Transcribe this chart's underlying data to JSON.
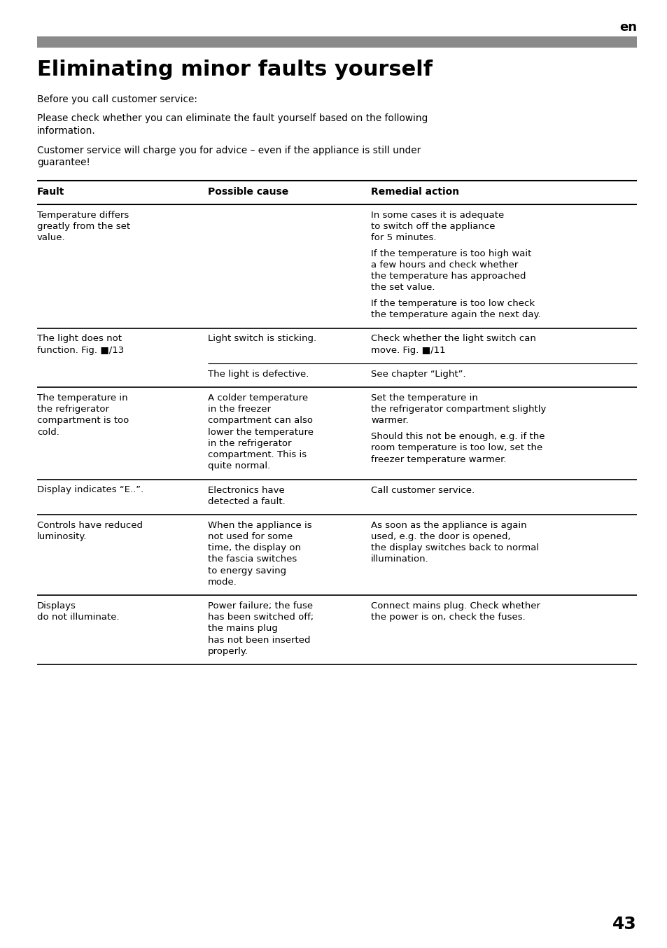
{
  "page_num": "43",
  "lang_label": "en",
  "title": "Eliminating minor faults yourself",
  "intro_paras": [
    "Before you call customer service:",
    "Please check whether you can eliminate the fault yourself based on the following\ninformation.",
    "Customer service will charge you for advice – even if the appliance is still under\nguarantee!"
  ],
  "col_headers": [
    "Fault",
    "Possible cause",
    "Remedial action"
  ],
  "rows": [
    {
      "fault": [
        "Temperature differs",
        "greatly from the set",
        "value."
      ],
      "cause": [],
      "remedy": [
        "In some cases it is adequate",
        "to switch off the appliance",
        "for 5 minutes.",
        "",
        "If the temperature is too high wait",
        "a few hours and check whether",
        "the temperature has approached",
        "the set value.",
        "",
        "If the temperature is too low check",
        "the temperature again the next day."
      ],
      "sub": null
    },
    {
      "fault": [
        "The light does not",
        "function. Fig. ■/13"
      ],
      "cause": [
        "Light switch is sticking."
      ],
      "remedy": [
        "Check whether the light switch can",
        "move. Fig. ■/11"
      ],
      "sub": {
        "cause": [
          "The light is defective."
        ],
        "remedy": [
          "See chapter “Light”."
        ]
      }
    },
    {
      "fault": [
        "The temperature in",
        "the refrigerator",
        "compartment is too",
        "cold."
      ],
      "cause": [
        "A colder temperature",
        "in the freezer",
        "compartment can also",
        "lower the temperature",
        "in the refrigerator",
        "compartment. This is",
        "quite normal."
      ],
      "remedy": [
        "Set the temperature in",
        "the refrigerator compartment slightly",
        "warmer.",
        "",
        "Should this not be enough, e.g. if the",
        "room temperature is too low, set the",
        "freezer temperature warmer."
      ],
      "sub": null
    },
    {
      "fault": [
        "Display indicates “E..”."
      ],
      "cause": [
        "Electronics have",
        "detected a fault."
      ],
      "remedy": [
        "Call customer service."
      ],
      "sub": null
    },
    {
      "fault": [
        "Controls have reduced",
        "luminosity."
      ],
      "cause": [
        "When the appliance is",
        "not used for some",
        "time, the display on",
        "the fascia switches",
        "to energy saving",
        "mode."
      ],
      "remedy": [
        "As soon as the appliance is again",
        "used, e.g. the door is opened,",
        "the display switches back to normal",
        "illumination."
      ],
      "sub": null
    },
    {
      "fault": [
        "Displays",
        "do not illuminate."
      ],
      "cause": [
        "Power failure; the fuse",
        "has been switched off;",
        "the mains plug",
        "has not been inserted",
        "properly."
      ],
      "remedy": [
        "Connect mains plug. Check whether",
        "the power is on, check the fuses."
      ],
      "sub": null
    }
  ],
  "bg_color": "#ffffff",
  "text_color": "#000000",
  "header_bar_color": "#8a8a8a",
  "figsize": [
    9.54,
    13.54
  ],
  "dpi": 100
}
